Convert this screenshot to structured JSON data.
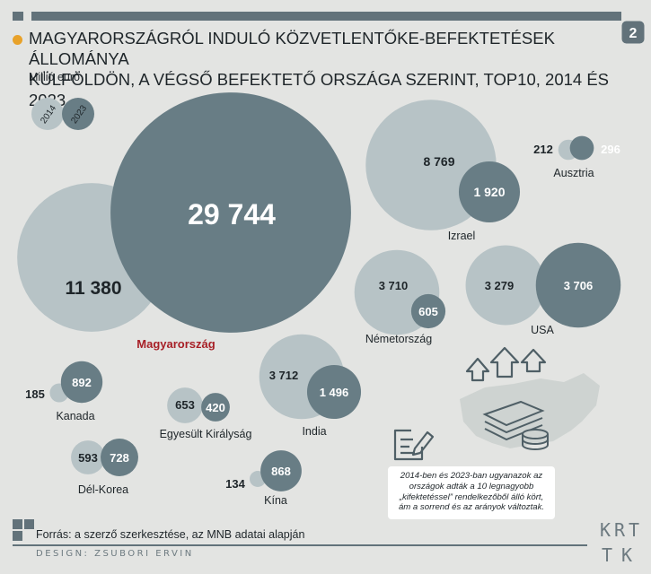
{
  "header": {
    "page_number": "2",
    "title_line1": "MAGYARORSZÁGRÓL INDULÓ KÖZVETLENTŐKE-BEFEKTETÉSEK ÁLLOMÁNYA",
    "title_line2": "KÜLFÖLDÖN, A VÉGSŐ BEFEKTETŐ ORSZÁGA SZERINT, TOP10, 2014 ÉS 2023",
    "unit": "Millió euró"
  },
  "colors": {
    "bubble_2014": "#b7c3c6",
    "bubble_2023": "#687d85",
    "highlight_label": "#a71f26",
    "accent": "#e8a22a"
  },
  "chart_data": {
    "type": "bubble",
    "title": "MAGYARORSZÁGRÓL INDULÓ KÖZVETLENTŐKE-BEFEKTETÉSEK ÁLLOMÁNYA KÜLFÖLDÖN, A VÉGSŐ BEFEKTETŐ ORSZÁGA SZERINT, TOP10, 2014 ÉS 2023",
    "unit": "Millió euró",
    "legend": {
      "series_2014": "2014",
      "series_2023": "2023",
      "placement": "top-left"
    },
    "series_names": [
      "2014",
      "2023"
    ],
    "countries": [
      {
        "name": "Magyarország",
        "v2014": 11380,
        "v2023": 29744,
        "label2014": "11 380",
        "label2023": "29 744",
        "highlight": true
      },
      {
        "name": "Izrael",
        "v2014": 8769,
        "v2023": 1920,
        "label2014": "8 769",
        "label2023": "1 920"
      },
      {
        "name": "Ausztria",
        "v2014": 212,
        "v2023": 296,
        "label2014": "212",
        "label2023": "296"
      },
      {
        "name": "Németország",
        "v2014": 3710,
        "v2023": 605,
        "label2014": "3 710",
        "label2023": "605"
      },
      {
        "name": "USA",
        "v2014": 3279,
        "v2023": 3706,
        "label2014": "3 279",
        "label2023": "3 706"
      },
      {
        "name": "Kanada",
        "v2014": 185,
        "v2023": 892,
        "label2014": "185",
        "label2023": "892"
      },
      {
        "name": "Egyesült Királyság",
        "v2014": 653,
        "v2023": 420,
        "label2014": "653",
        "label2023": "420"
      },
      {
        "name": "India",
        "v2014": 3712,
        "v2023": 1496,
        "label2014": "3 712",
        "label2023": "1 496"
      },
      {
        "name": "Dél-Korea",
        "v2014": 593,
        "v2023": 728,
        "label2014": "593",
        "label2023": "728"
      },
      {
        "name": "Kína",
        "v2014": 134,
        "v2023": 868,
        "label2014": "134",
        "label2023": "868"
      }
    ]
  },
  "note": {
    "text_before": "2014-ben és 2023-ban ugyanazok az országok adták a 10 legnagyobb „",
    "text_emph": "kifektetéssel",
    "text_after": "” rendelkezőből álló kört, ám a sorrend és az arányok változtak."
  },
  "footer": {
    "source": "Forrás: a szerző szerkesztése, az MNB adatai alapján",
    "design": "DESIGN: ZSUBORI ERVIN",
    "logo_top": "KRT",
    "logo_bottom": "TK"
  }
}
